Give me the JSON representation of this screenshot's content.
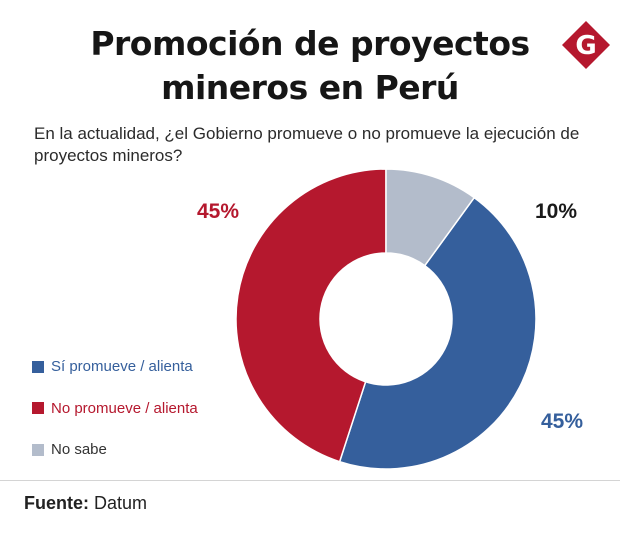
{
  "title_lines": [
    "Promoción de proyectos",
    "mineros en Perú"
  ],
  "question_lines": [
    "En la actualidad, ¿el Gobierno promueve o no promueve la ejecución de",
    "proyectos mineros?"
  ],
  "logo_letter": "G",
  "colors": {
    "si": "#355f9c",
    "no": "#b5182e",
    "nosabe": "#b3bccb",
    "logo": "#b5182e"
  },
  "chart_data": {
    "type": "pie",
    "donut": true,
    "unit": "%",
    "slices": [
      {
        "label": "Sí promueve / alienta",
        "value": 45,
        "display": "45%",
        "color": "#355f9c"
      },
      {
        "label": "No promueve / alienta",
        "value": 45,
        "display": "45%",
        "color": "#b5182e"
      },
      {
        "label": "No sabe",
        "value": 10,
        "display": "10%",
        "color": "#b3bccb"
      }
    ],
    "legend_position": "left"
  },
  "source": {
    "label": "Fuente:",
    "value": "Datum"
  }
}
